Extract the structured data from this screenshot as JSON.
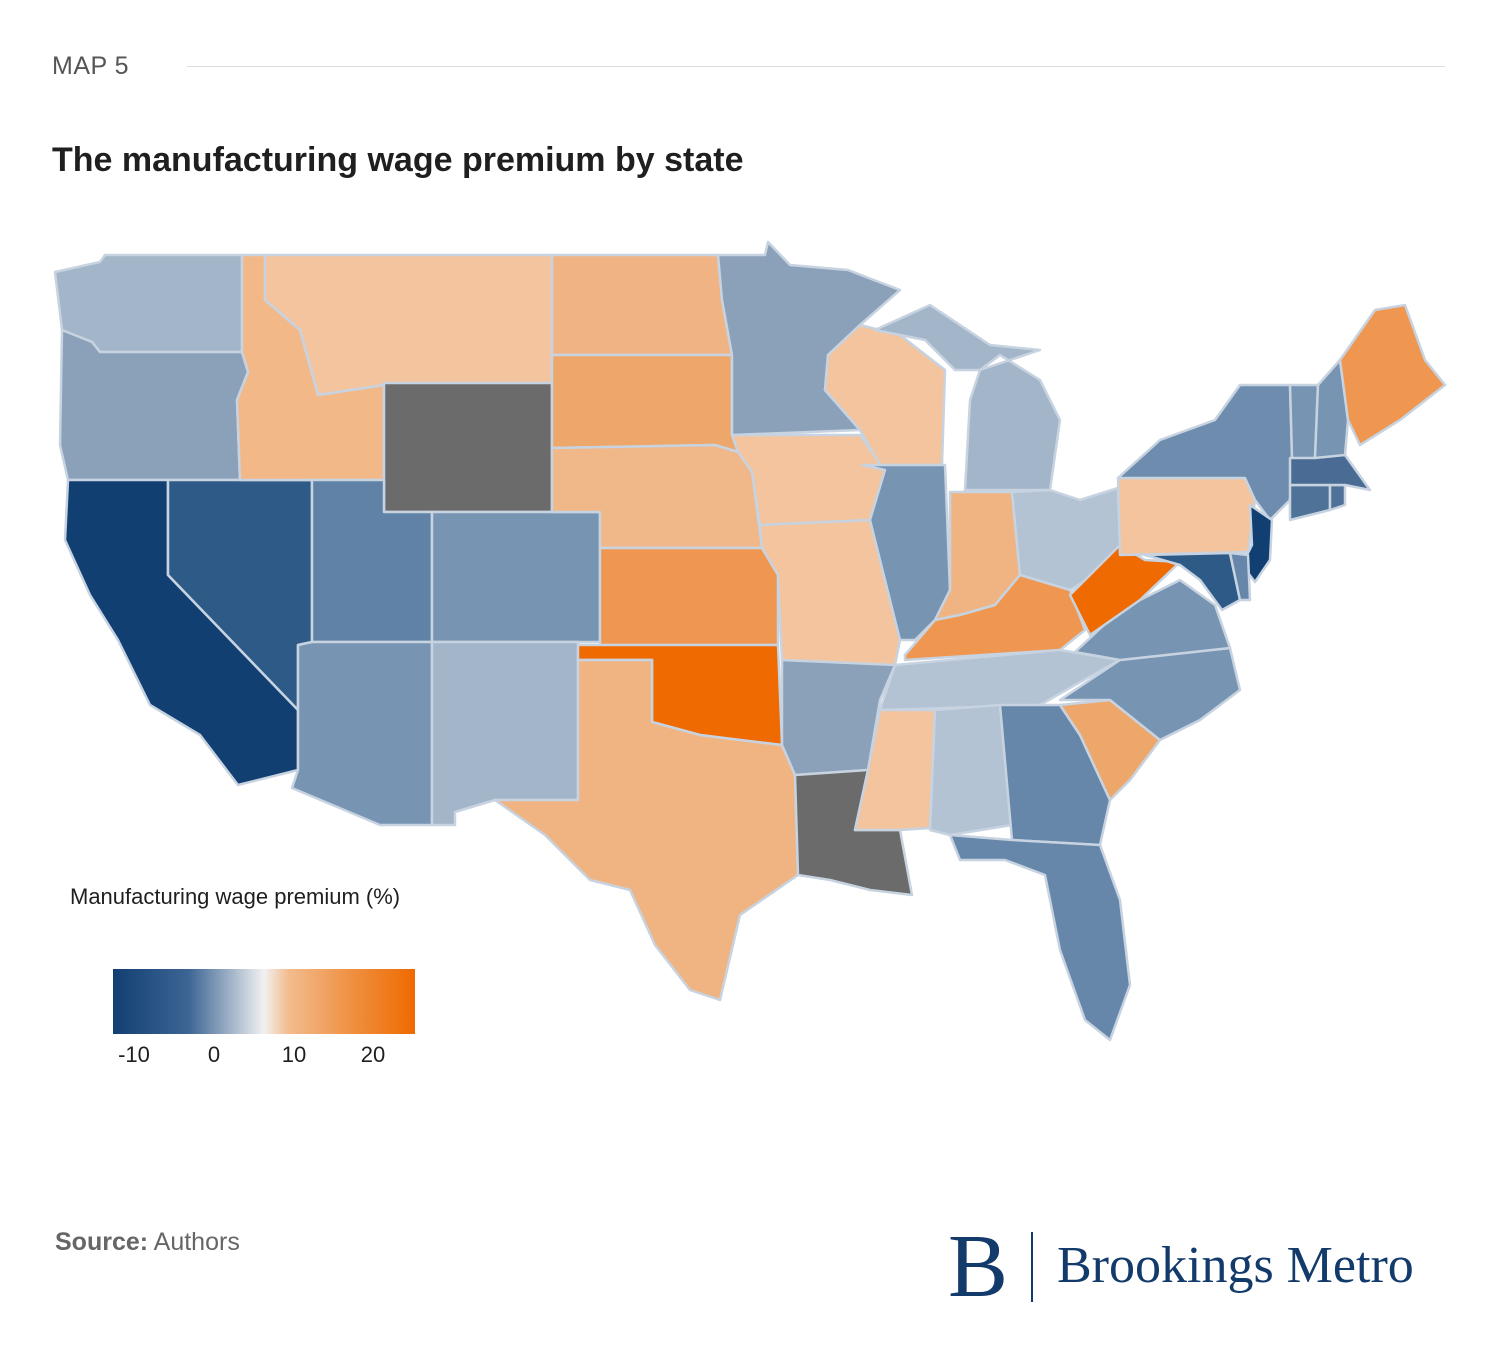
{
  "header": {
    "map_label": "MAP 5",
    "title": "The manufacturing wage premium by state"
  },
  "legend": {
    "title": "Manufacturing wage premium (%)",
    "ticks": [
      "-10",
      "0",
      "10",
      "20"
    ],
    "color_low": "#123f72",
    "color_mid": "#f1f1f1",
    "color_high": "#ef6a00",
    "no_data_color": "#6b6b6b"
  },
  "footer": {
    "source_label": "Source:",
    "source_text": " Authors",
    "logo_letter": "B",
    "logo_text": "Brookings Metro"
  },
  "states": {
    "WA": "#a3b5c8",
    "OR": "#8ba1b9",
    "CA": "#123f72",
    "NV": "#2e5a88",
    "ID": "#f2b887",
    "MT": "#f3c49d",
    "WY": "#6b6b6b",
    "UT": "#5f82a6",
    "AZ": "#7794b2",
    "CO": "#7794b2",
    "NM": "#a3b5c8",
    "ND": "#f0b383",
    "SD": "#eea76a",
    "NE": "#f0b789",
    "KS": "#ef9650",
    "OK": "#ef6a00",
    "TX": "#f0b482",
    "MN": "#8ba1b9",
    "IA": "#f3c49d",
    "MO": "#f3c49d",
    "AR": "#8ba1b9",
    "LA": "#6b6b6b",
    "WI": "#f3c49d",
    "IL": "#7794b2",
    "MI": "#a3b5c8",
    "IN": "#f0b482",
    "OH": "#b3c3d3",
    "KY": "#ef9650",
    "TN": "#b3c3d3",
    "MS": "#f3c49d",
    "AL": "#b3c3d3",
    "GA": "#6686aa",
    "FL": "#6686aa",
    "SC": "#eea76a",
    "NC": "#7794b2",
    "VA": "#7794b2",
    "WV": "#ef6a00",
    "PA": "#f3c49d",
    "NY": "#6e8cae",
    "NJ": "#123f72",
    "DE": "#6686aa",
    "MD": "#2e5a88",
    "CT": "#4f7299",
    "RI": "#4f7299",
    "MA": "#4a6c94",
    "VT": "#7794b2",
    "NH": "#7794b2",
    "ME": "#ef9650"
  }
}
